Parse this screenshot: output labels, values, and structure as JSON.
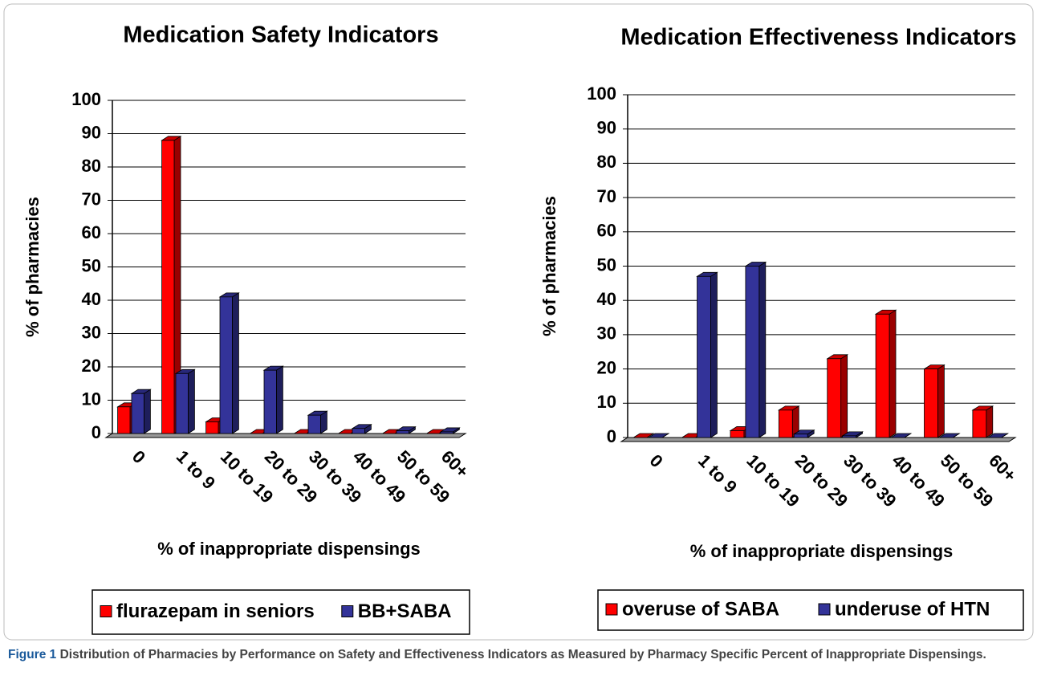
{
  "charts": [
    {
      "chart_data": {
        "type": "bar",
        "title": "Medication Safety Indicators",
        "x_label": "% of inappropriate dispensings",
        "y_label": "% of pharmacies",
        "categories": [
          "0",
          "1 to 9",
          "10 to 19",
          "20 to 29",
          "30 to 39",
          "40 to 49",
          "50 to 59",
          "60+"
        ],
        "series": [
          {
            "name": "flurazepam in seniors",
            "color": "#ff0000",
            "values": [
              8,
              88,
              3.5,
              0,
              0,
              0,
              0,
              0
            ]
          },
          {
            "name": "BB+SABA",
            "color": "#333399",
            "values": [
              12,
              18,
              41,
              19,
              5.5,
              1.5,
              0.8,
              0.5
            ]
          }
        ],
        "ylim": [
          0,
          100
        ],
        "yticks": [
          0,
          10,
          20,
          30,
          40,
          50,
          60,
          70,
          80,
          90,
          100
        ],
        "grid": true
      }
    },
    {
      "chart_data": {
        "type": "bar",
        "title": "Medication Effectiveness Indicators",
        "x_label": "% of inappropriate dispensings",
        "y_label": "% of pharmacies",
        "categories": [
          "0",
          "1 to 9",
          "10 to 19",
          "20 to 29",
          "30 to 39",
          "40 to 49",
          "50 to 59",
          "60+"
        ],
        "series": [
          {
            "name": "overuse of SABA",
            "color": "#ff0000",
            "values": [
              0,
              0,
              2,
              8,
              23,
              36,
              20,
              8
            ]
          },
          {
            "name": "underuse of HTN",
            "color": "#333399",
            "values": [
              0,
              47,
              50,
              1,
              0.5,
              0,
              0,
              0
            ]
          }
        ],
        "ylim": [
          0,
          100
        ],
        "yticks": [
          0,
          10,
          20,
          30,
          40,
          50,
          60,
          70,
          80,
          90,
          100
        ],
        "grid": true
      }
    }
  ],
  "caption": {
    "label": "Figure 1",
    "text": "Distribution of Pharmacies by Performance on Safety and Effectiveness Indicators as Measured by Pharmacy Specific Percent of Inappropriate Dispensings."
  }
}
